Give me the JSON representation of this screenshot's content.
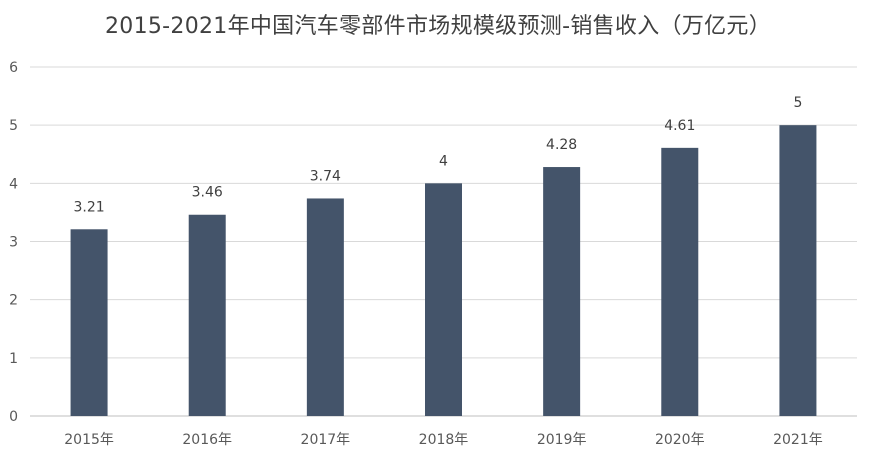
{
  "chart_data": {
    "type": "bar",
    "title": "2015-2021年中国汽车零部件市场规模级预测-销售收入（万亿元）",
    "categories": [
      "2015年",
      "2016年",
      "2017年",
      "2018年",
      "2019年",
      "2020年",
      "2021年"
    ],
    "values": [
      3.21,
      3.46,
      3.74,
      4,
      4.28,
      4.61,
      5
    ],
    "data_labels": [
      "3.21",
      "3.46",
      "3.74",
      "4",
      "4.28",
      "4.61",
      "5"
    ],
    "ylim": [
      0,
      6
    ],
    "yticks": [
      "0",
      "1",
      "2",
      "3",
      "4",
      "5",
      "6"
    ],
    "xlabel": "",
    "ylabel": "",
    "grid": true,
    "legend": "none",
    "bar_color": "#44546a"
  }
}
